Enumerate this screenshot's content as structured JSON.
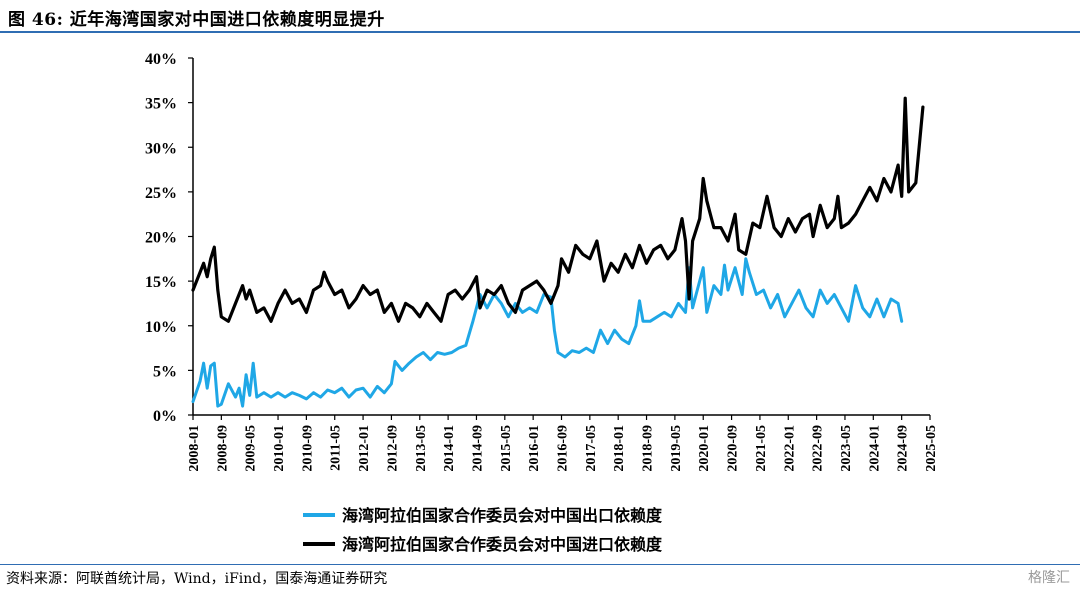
{
  "header": {
    "title": "图 46:  近年海湾国家对中国进口依赖度明显提升"
  },
  "footer": {
    "source": "资料来源：阿联酋统计局，Wind，iFind，国泰海通证券研究",
    "watermark": "格隆汇"
  },
  "colors": {
    "accent_rule": "#2f6db3",
    "export_series": "#1fa7e6",
    "import_series": "#000000"
  },
  "chart_data": {
    "type": "line",
    "title": "",
    "xlabel": "",
    "ylabel": "",
    "ylim": [
      0,
      40
    ],
    "yticks": [
      "0%",
      "5%",
      "10%",
      "15%",
      "20%",
      "25%",
      "30%",
      "35%",
      "40%"
    ],
    "xlim": [
      "2008-01",
      "2025-05"
    ],
    "xticks": [
      "2008-01",
      "2008-09",
      "2009-05",
      "2010-01",
      "2010-09",
      "2011-05",
      "2012-01",
      "2012-09",
      "2013-05",
      "2014-01",
      "2014-09",
      "2015-05",
      "2016-01",
      "2016-09",
      "2017-05",
      "2018-01",
      "2018-09",
      "2019-05",
      "2020-01",
      "2020-09",
      "2021-05",
      "2022-01",
      "2022-09",
      "2023-05",
      "2024-01",
      "2024-09",
      "2025-05"
    ],
    "grid": false,
    "legend_position": "bottom",
    "series": [
      {
        "name": "海湾阿拉伯国家合作委员会对中国出口依赖度",
        "color": "#1fa7e6",
        "points": [
          [
            "2008-01",
            1.5
          ],
          [
            "2008-03",
            3.8
          ],
          [
            "2008-04",
            5.8
          ],
          [
            "2008-05",
            3.0
          ],
          [
            "2008-06",
            5.5
          ],
          [
            "2008-07",
            5.8
          ],
          [
            "2008-08",
            1.0
          ],
          [
            "2008-09",
            1.2
          ],
          [
            "2008-11",
            3.5
          ],
          [
            "2009-01",
            2.0
          ],
          [
            "2009-02",
            3.0
          ],
          [
            "2009-03",
            1.0
          ],
          [
            "2009-04",
            4.5
          ],
          [
            "2009-05",
            2.2
          ],
          [
            "2009-06",
            5.8
          ],
          [
            "2009-07",
            2.0
          ],
          [
            "2009-09",
            2.5
          ],
          [
            "2009-11",
            2.0
          ],
          [
            "2010-01",
            2.5
          ],
          [
            "2010-03",
            2.0
          ],
          [
            "2010-05",
            2.5
          ],
          [
            "2010-07",
            2.2
          ],
          [
            "2010-09",
            1.8
          ],
          [
            "2010-11",
            2.5
          ],
          [
            "2011-01",
            2.0
          ],
          [
            "2011-03",
            2.8
          ],
          [
            "2011-05",
            2.5
          ],
          [
            "2011-07",
            3.0
          ],
          [
            "2011-09",
            2.0
          ],
          [
            "2011-11",
            2.8
          ],
          [
            "2012-01",
            3.0
          ],
          [
            "2012-03",
            2.0
          ],
          [
            "2012-05",
            3.2
          ],
          [
            "2012-07",
            2.5
          ],
          [
            "2012-09",
            3.5
          ],
          [
            "2012-10",
            6.0
          ],
          [
            "2012-12",
            5.0
          ],
          [
            "2013-02",
            5.8
          ],
          [
            "2013-04",
            6.5
          ],
          [
            "2013-06",
            7.0
          ],
          [
            "2013-08",
            6.2
          ],
          [
            "2013-10",
            7.0
          ],
          [
            "2013-12",
            6.8
          ],
          [
            "2014-02",
            7.0
          ],
          [
            "2014-04",
            7.5
          ],
          [
            "2014-06",
            7.8
          ],
          [
            "2014-08",
            10.5
          ],
          [
            "2014-10",
            13.5
          ],
          [
            "2014-12",
            12.0
          ],
          [
            "2015-02",
            13.5
          ],
          [
            "2015-04",
            12.5
          ],
          [
            "2015-06",
            11.0
          ],
          [
            "2015-08",
            12.5
          ],
          [
            "2015-10",
            11.5
          ],
          [
            "2015-12",
            12.0
          ],
          [
            "2016-02",
            11.5
          ],
          [
            "2016-04",
            13.5
          ],
          [
            "2016-06",
            13.2
          ],
          [
            "2016-07",
            9.5
          ],
          [
            "2016-08",
            7.0
          ],
          [
            "2016-10",
            6.5
          ],
          [
            "2016-12",
            7.2
          ],
          [
            "2017-02",
            7.0
          ],
          [
            "2017-04",
            7.5
          ],
          [
            "2017-06",
            7.0
          ],
          [
            "2017-08",
            9.5
          ],
          [
            "2017-10",
            8.0
          ],
          [
            "2017-12",
            9.5
          ],
          [
            "2018-02",
            8.5
          ],
          [
            "2018-04",
            8.0
          ],
          [
            "2018-06",
            10.0
          ],
          [
            "2018-07",
            12.8
          ],
          [
            "2018-08",
            10.5
          ],
          [
            "2018-10",
            10.5
          ],
          [
            "2018-12",
            11.0
          ],
          [
            "2019-02",
            11.5
          ],
          [
            "2019-04",
            11.0
          ],
          [
            "2019-06",
            12.5
          ],
          [
            "2019-08",
            11.5
          ],
          [
            "2019-09",
            16.5
          ],
          [
            "2019-10",
            12.0
          ],
          [
            "2019-11",
            13.5
          ],
          [
            "2020-01",
            16.5
          ],
          [
            "2020-02",
            11.5
          ],
          [
            "2020-04",
            14.5
          ],
          [
            "2020-06",
            13.5
          ],
          [
            "2020-07",
            16.8
          ],
          [
            "2020-08",
            14.0
          ],
          [
            "2020-10",
            16.5
          ],
          [
            "2020-12",
            13.5
          ],
          [
            "2021-01",
            17.5
          ],
          [
            "2021-02",
            16.0
          ],
          [
            "2021-04",
            13.5
          ],
          [
            "2021-06",
            14.0
          ],
          [
            "2021-08",
            12.0
          ],
          [
            "2021-10",
            13.5
          ],
          [
            "2021-12",
            11.0
          ],
          [
            "2022-02",
            12.5
          ],
          [
            "2022-04",
            14.0
          ],
          [
            "2022-06",
            12.0
          ],
          [
            "2022-08",
            11.0
          ],
          [
            "2022-10",
            14.0
          ],
          [
            "2022-12",
            12.5
          ],
          [
            "2023-02",
            13.5
          ],
          [
            "2023-04",
            12.0
          ],
          [
            "2023-06",
            10.5
          ],
          [
            "2023-08",
            14.5
          ],
          [
            "2023-10",
            12.0
          ],
          [
            "2023-12",
            11.0
          ],
          [
            "2024-02",
            13.0
          ],
          [
            "2024-04",
            11.0
          ],
          [
            "2024-06",
            13.0
          ],
          [
            "2024-08",
            12.5
          ],
          [
            "2024-09",
            10.5
          ]
        ]
      },
      {
        "name": "海湾阿拉伯国家合作委员会对中国进口依赖度",
        "color": "#000000",
        "points": [
          [
            "2008-01",
            14.0
          ],
          [
            "2008-03",
            16.0
          ],
          [
            "2008-04",
            17.0
          ],
          [
            "2008-05",
            15.5
          ],
          [
            "2008-06",
            17.5
          ],
          [
            "2008-07",
            18.8
          ],
          [
            "2008-08",
            14.0
          ],
          [
            "2008-09",
            11.0
          ],
          [
            "2008-11",
            10.5
          ],
          [
            "2009-01",
            12.5
          ],
          [
            "2009-03",
            14.5
          ],
          [
            "2009-04",
            13.0
          ],
          [
            "2009-05",
            14.0
          ],
          [
            "2009-07",
            11.5
          ],
          [
            "2009-09",
            12.0
          ],
          [
            "2009-11",
            10.5
          ],
          [
            "2010-01",
            12.5
          ],
          [
            "2010-03",
            14.0
          ],
          [
            "2010-05",
            12.5
          ],
          [
            "2010-07",
            13.0
          ],
          [
            "2010-09",
            11.5
          ],
          [
            "2010-11",
            14.0
          ],
          [
            "2011-01",
            14.5
          ],
          [
            "2011-02",
            16.0
          ],
          [
            "2011-03",
            15.0
          ],
          [
            "2011-05",
            13.5
          ],
          [
            "2011-07",
            14.0
          ],
          [
            "2011-09",
            12.0
          ],
          [
            "2011-11",
            13.0
          ],
          [
            "2012-01",
            14.5
          ],
          [
            "2012-03",
            13.5
          ],
          [
            "2012-05",
            14.0
          ],
          [
            "2012-07",
            11.5
          ],
          [
            "2012-09",
            12.5
          ],
          [
            "2012-11",
            10.5
          ],
          [
            "2013-01",
            12.5
          ],
          [
            "2013-03",
            12.0
          ],
          [
            "2013-05",
            11.0
          ],
          [
            "2013-07",
            12.5
          ],
          [
            "2013-09",
            11.5
          ],
          [
            "2013-11",
            10.5
          ],
          [
            "2014-01",
            13.5
          ],
          [
            "2014-03",
            14.0
          ],
          [
            "2014-05",
            13.0
          ],
          [
            "2014-07",
            14.0
          ],
          [
            "2014-09",
            15.5
          ],
          [
            "2014-10",
            12.0
          ],
          [
            "2014-12",
            14.0
          ],
          [
            "2015-02",
            13.5
          ],
          [
            "2015-04",
            14.5
          ],
          [
            "2015-06",
            12.5
          ],
          [
            "2015-08",
            11.5
          ],
          [
            "2015-10",
            14.0
          ],
          [
            "2015-12",
            14.5
          ],
          [
            "2016-02",
            15.0
          ],
          [
            "2016-04",
            14.0
          ],
          [
            "2016-06",
            12.5
          ],
          [
            "2016-08",
            14.5
          ],
          [
            "2016-09",
            17.5
          ],
          [
            "2016-11",
            16.0
          ],
          [
            "2017-01",
            19.0
          ],
          [
            "2017-03",
            18.0
          ],
          [
            "2017-05",
            17.5
          ],
          [
            "2017-07",
            19.5
          ],
          [
            "2017-09",
            15.0
          ],
          [
            "2017-11",
            17.0
          ],
          [
            "2018-01",
            16.0
          ],
          [
            "2018-03",
            18.0
          ],
          [
            "2018-05",
            16.5
          ],
          [
            "2018-07",
            19.0
          ],
          [
            "2018-09",
            17.0
          ],
          [
            "2018-11",
            18.5
          ],
          [
            "2019-01",
            19.0
          ],
          [
            "2019-03",
            17.5
          ],
          [
            "2019-05",
            18.5
          ],
          [
            "2019-07",
            22.0
          ],
          [
            "2019-08",
            19.5
          ],
          [
            "2019-09",
            13.0
          ],
          [
            "2019-10",
            19.5
          ],
          [
            "2019-12",
            22.0
          ],
          [
            "2020-01",
            26.5
          ],
          [
            "2020-02",
            24.0
          ],
          [
            "2020-04",
            21.0
          ],
          [
            "2020-06",
            21.0
          ],
          [
            "2020-08",
            19.5
          ],
          [
            "2020-10",
            22.5
          ],
          [
            "2020-11",
            18.5
          ],
          [
            "2021-01",
            18.0
          ],
          [
            "2021-03",
            21.5
          ],
          [
            "2021-05",
            21.0
          ],
          [
            "2021-07",
            24.5
          ],
          [
            "2021-09",
            21.0
          ],
          [
            "2021-11",
            20.0
          ],
          [
            "2022-01",
            22.0
          ],
          [
            "2022-03",
            20.5
          ],
          [
            "2022-05",
            22.0
          ],
          [
            "2022-07",
            22.5
          ],
          [
            "2022-08",
            20.0
          ],
          [
            "2022-10",
            23.5
          ],
          [
            "2022-12",
            21.0
          ],
          [
            "2023-02",
            22.0
          ],
          [
            "2023-03",
            24.5
          ],
          [
            "2023-04",
            21.0
          ],
          [
            "2023-06",
            21.5
          ],
          [
            "2023-08",
            22.5
          ],
          [
            "2023-10",
            24.0
          ],
          [
            "2023-12",
            25.5
          ],
          [
            "2024-02",
            24.0
          ],
          [
            "2024-04",
            26.5
          ],
          [
            "2024-06",
            25.0
          ],
          [
            "2024-08",
            28.0
          ],
          [
            "2024-09",
            24.5
          ],
          [
            "2024-10",
            35.5
          ],
          [
            "2024-11",
            25.0
          ],
          [
            "2025-01",
            26.0
          ],
          [
            "2025-03",
            34.5
          ]
        ]
      }
    ]
  }
}
